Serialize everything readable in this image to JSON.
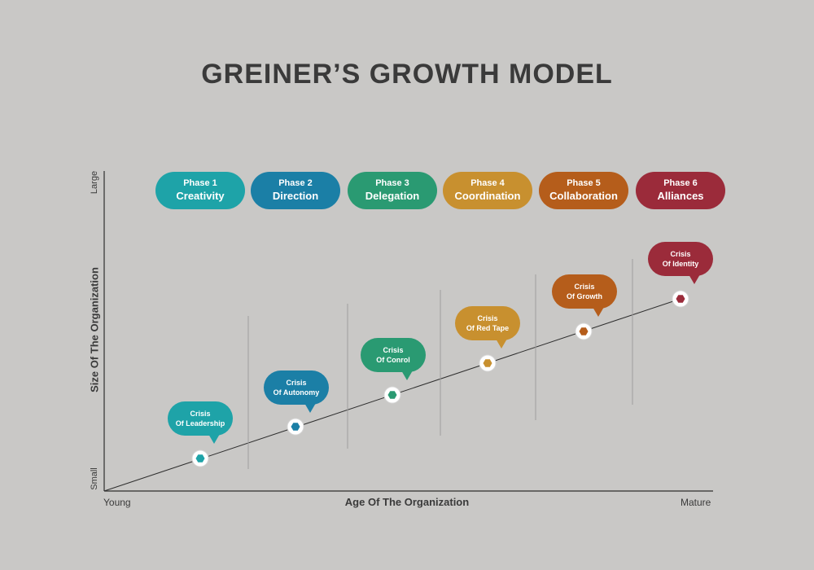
{
  "title": "GREINER’S GROWTH  MODEL",
  "axes": {
    "x_title": "Age Of  The Organization",
    "x_start": "Young",
    "x_end": "Mature",
    "y_title": "Size Of  The Organization",
    "y_start": "Small",
    "y_end": "Large"
  },
  "phases": [
    {
      "num": "Phase 1",
      "name": "Creativity",
      "color": "#1ea3a8"
    },
    {
      "num": "Phase 2",
      "name": "Direction",
      "color": "#1b7fa6"
    },
    {
      "num": "Phase 3",
      "name": "Delegation",
      "color": "#2a9a72"
    },
    {
      "num": "Phase 4",
      "name": "Coordination",
      "color": "#c8902f"
    },
    {
      "num": "Phase 5",
      "name": "Collaboration",
      "color": "#b55d1b"
    },
    {
      "num": "Phase 6",
      "name": "Alliances",
      "color": "#9b2b3a"
    }
  ],
  "crises": [
    {
      "line1": "Crisis",
      "line2": "Of Leadership",
      "color": "#1ea3a8"
    },
    {
      "line1": "Crisis",
      "line2": "Of Autonomy",
      "color": "#1b7fa6"
    },
    {
      "line1": "Crisis",
      "line2": "Of Conrol",
      "color": "#2a9a72"
    },
    {
      "line1": "Crisis",
      "line2": "Of Red Tape",
      "color": "#c8902f"
    },
    {
      "line1": "Crisis",
      "line2": "Of Growth",
      "color": "#b55d1b"
    },
    {
      "line1": "Crisis",
      "line2": "Of Identity",
      "color": "#9b2b3a"
    }
  ]
}
